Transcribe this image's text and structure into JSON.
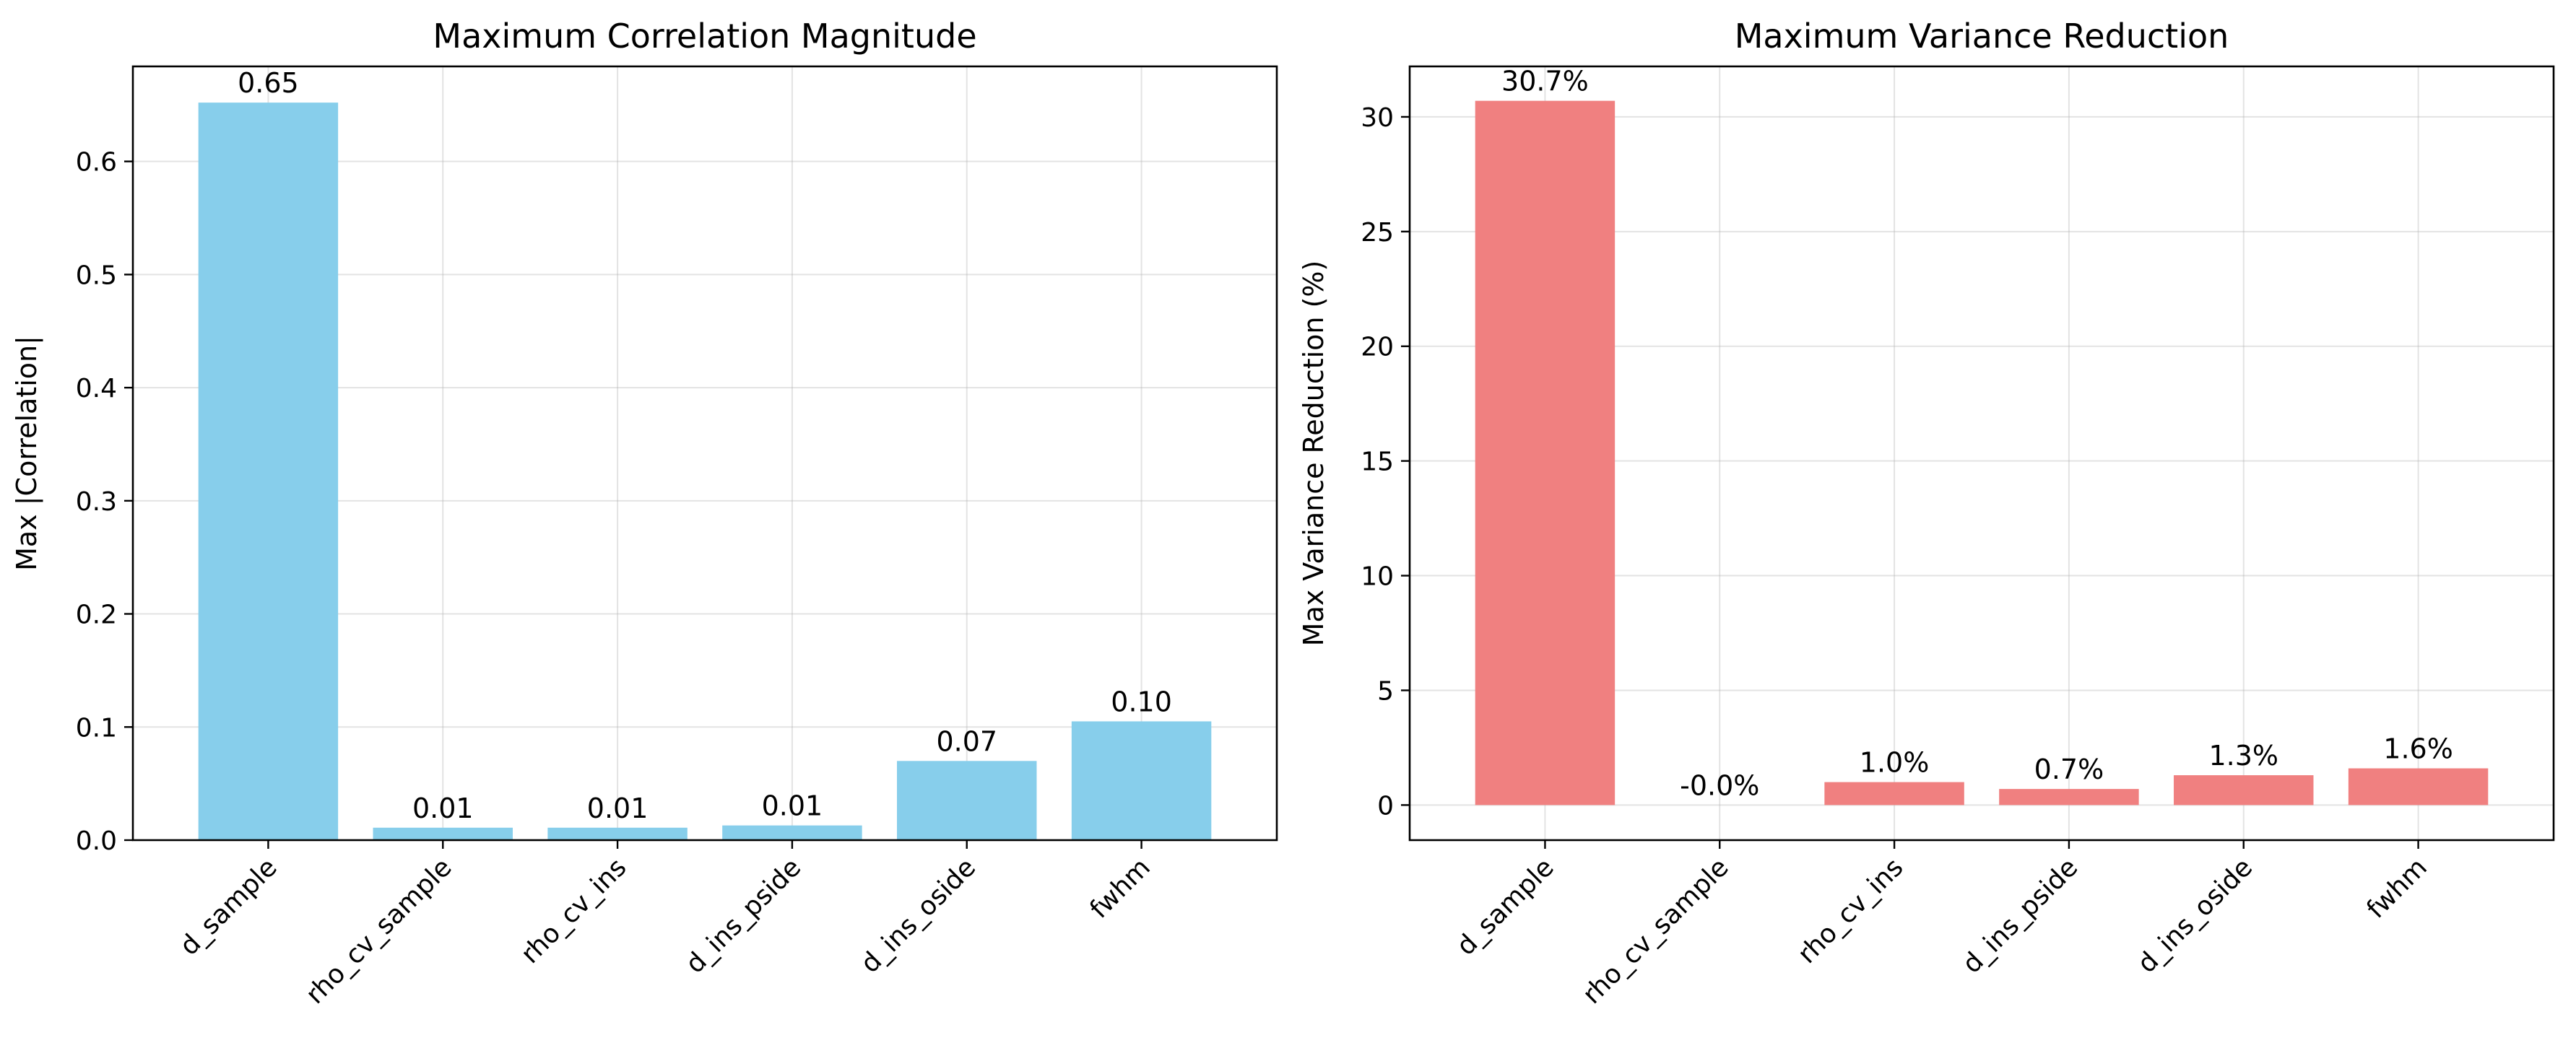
{
  "chart_data": [
    {
      "type": "bar",
      "title": "Maximum Correlation Magnitude",
      "xlabel": "",
      "ylabel": "Max |Correlation|",
      "categories": [
        "d_sample",
        "rho_cv_sample",
        "rho_cv_ins",
        "d_ins_pside",
        "d_ins_oside",
        "fwhm"
      ],
      "values": [
        0.652,
        0.011,
        0.011,
        0.013,
        0.07,
        0.105
      ],
      "data_labels": [
        "0.65",
        "0.01",
        "0.01",
        "0.01",
        "0.07",
        "0.10"
      ],
      "ylim": [
        0,
        0.684
      ],
      "yticks": [
        0.0,
        0.1,
        0.2,
        0.3,
        0.4,
        0.5,
        0.6
      ],
      "ytick_labels": [
        "0.0",
        "0.1",
        "0.2",
        "0.3",
        "0.4",
        "0.5",
        "0.6"
      ],
      "color": "#87CEEB",
      "grid": true,
      "legend": "none"
    },
    {
      "type": "bar",
      "title": "Maximum Variance Reduction",
      "xlabel": "",
      "ylabel": "Max Variance Reduction (%)",
      "categories": [
        "d_sample",
        "rho_cv_sample",
        "rho_cv_ins",
        "d_ins_pside",
        "d_ins_oside",
        "fwhm"
      ],
      "values": [
        30.7,
        -0.0,
        1.0,
        0.7,
        1.3,
        1.6
      ],
      "data_labels": [
        "30.7%",
        "-0.0%",
        "1.0%",
        "0.7%",
        "1.3%",
        "1.6%"
      ],
      "ylim": [
        -1.53,
        32.2
      ],
      "yticks": [
        0,
        5,
        10,
        15,
        20,
        25,
        30
      ],
      "ytick_labels": [
        "0",
        "5",
        "10",
        "15",
        "20",
        "25",
        "30"
      ],
      "color": "#F08080",
      "grid": true,
      "legend": "none"
    }
  ]
}
